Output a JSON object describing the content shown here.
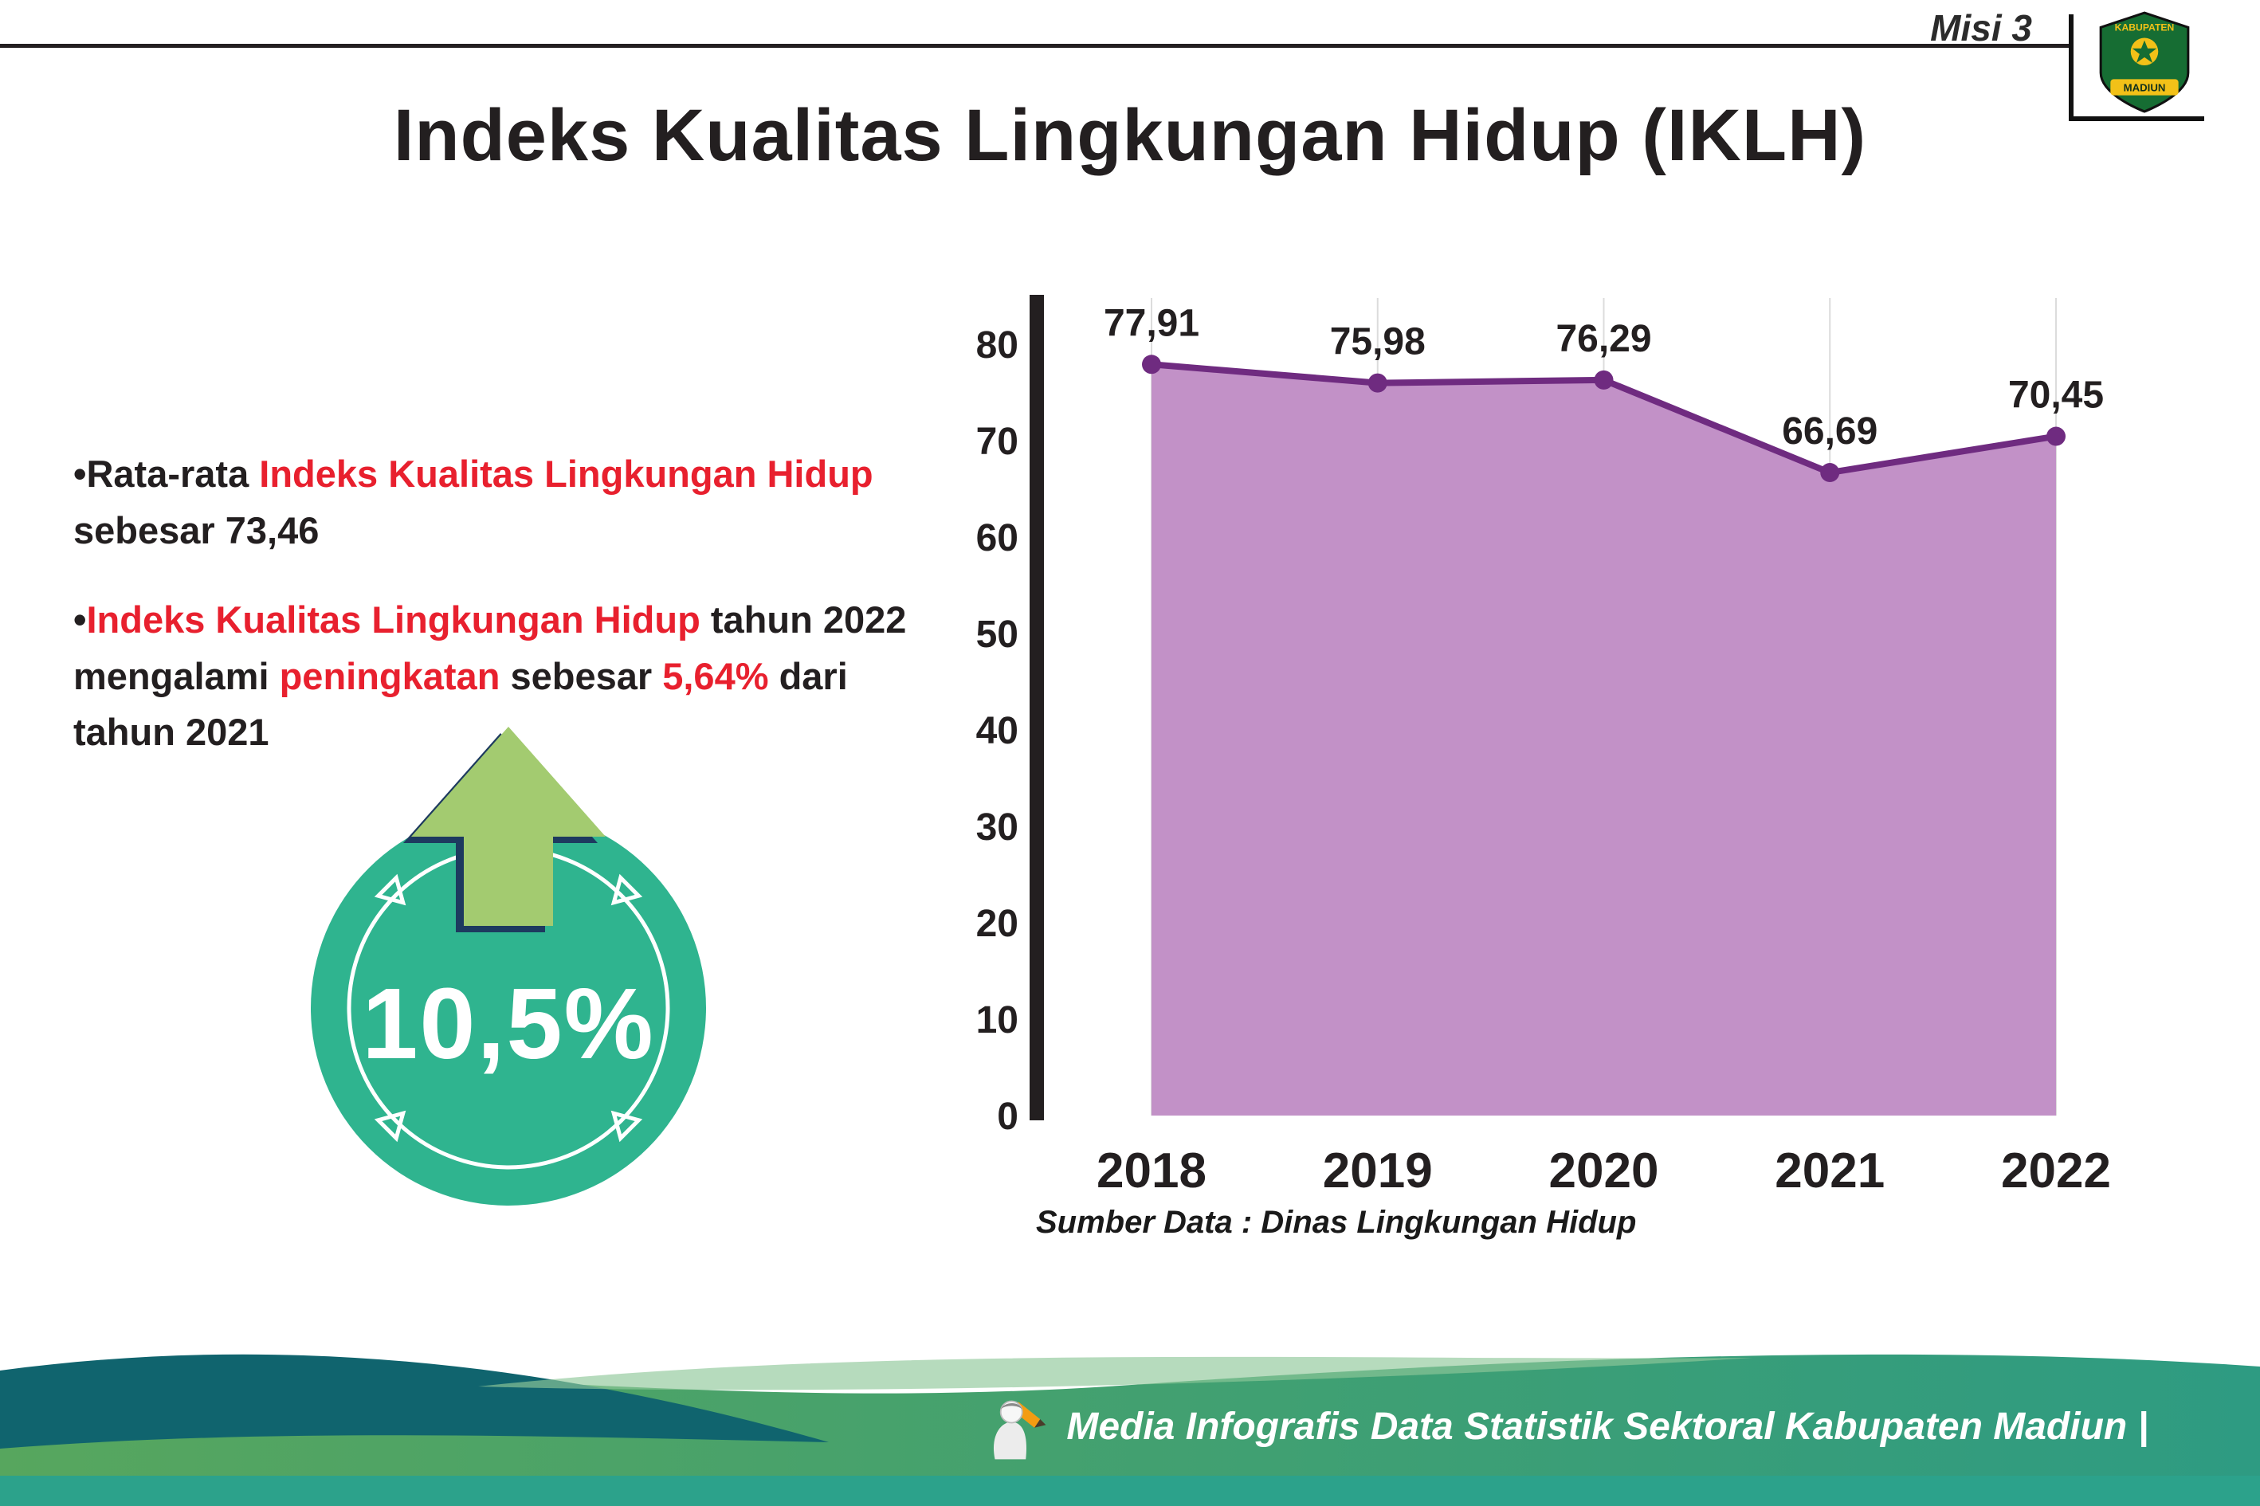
{
  "header": {
    "misi": "Misi 3",
    "title": "Indeks Kualitas Lingkungan Hidup (IKLH)",
    "logo": {
      "top": "KABUPATEN",
      "bottom": "MADIUN"
    }
  },
  "bullets": {
    "marker": "•",
    "b1": {
      "p1": "Rata-rata ",
      "p2": "Indeks Kualitas Lingkungan Hidup",
      "p3": " sebesar 73,46"
    },
    "b2": {
      "p1": "Indeks Kualitas Lingkungan Hidup",
      "p2": " tahun 2022 mengalami ",
      "p3": "peningkatan",
      "p4": " sebesar ",
      "p5": "5,64%",
      "p6": " dari tahun 2021"
    }
  },
  "badge": {
    "value": "10,5%"
  },
  "chart_data": {
    "type": "area",
    "title": "Indeks Kualitas Lingkungan Hidup (IKLH)",
    "categories": [
      "2018",
      "2019",
      "2020",
      "2021",
      "2022"
    ],
    "values": [
      77.91,
      75.98,
      76.29,
      66.69,
      70.45
    ],
    "value_labels": [
      "77,91",
      "75,98",
      "76,29",
      "66,69",
      "70,45"
    ],
    "ylim": [
      0,
      80
    ],
    "yticks": [
      0,
      10,
      20,
      30,
      40,
      50,
      60,
      70,
      80
    ],
    "grid": "vertical",
    "legend": "none",
    "colors": {
      "area": "#c291c7",
      "line": "#6f2b80",
      "point": "#6f2b80",
      "axis": "#231f20"
    }
  },
  "source": {
    "text": "Sumber Data : Dinas Lingkungan Hidup"
  },
  "footer": {
    "text": "Media Infografis Data Statistik Sektoral Kabupaten Madiun |"
  }
}
